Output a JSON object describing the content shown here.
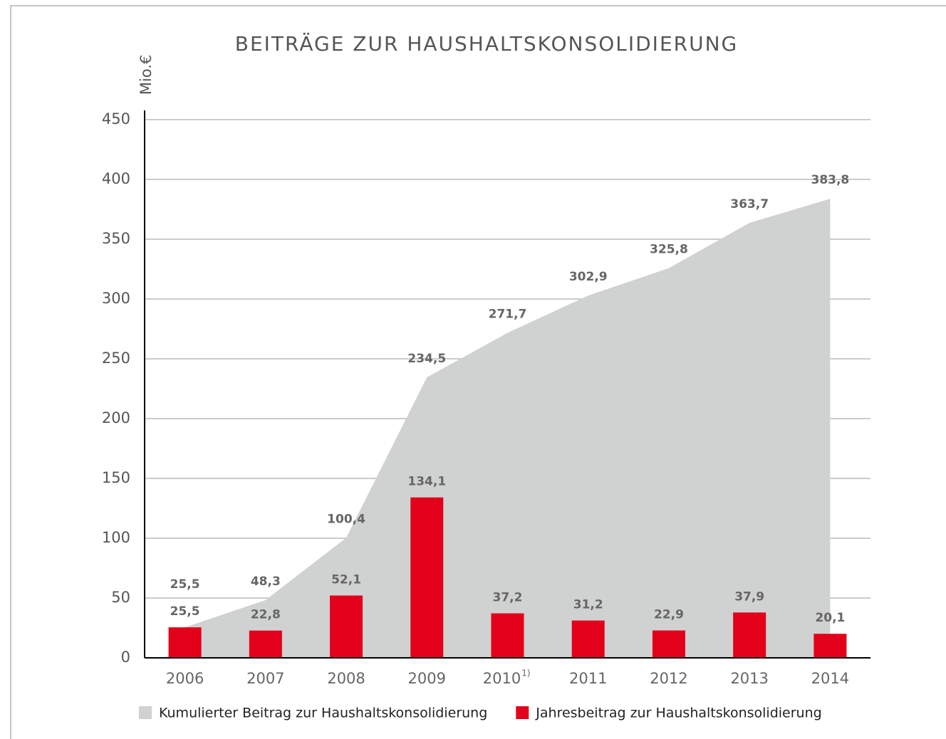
{
  "chart_data": {
    "type": "area-bar",
    "title": "BEITRÄGE ZUR HAUSHALTSKONSOLIDIERUNG",
    "y_label": "Mio.€",
    "categories": [
      "2006",
      "2007",
      "2008",
      "2009",
      "2010",
      "2011",
      "2012",
      "2013",
      "2014"
    ],
    "category_superscripts": [
      null,
      null,
      null,
      null,
      "1)",
      null,
      null,
      null,
      null
    ],
    "series": [
      {
        "name": "Kumulierter Beitrag zur Haushaltskonsolidierung",
        "kind": "area",
        "color": "#d0d1d1",
        "values": [
          25.5,
          48.3,
          100.4,
          234.5,
          271.7,
          302.9,
          325.8,
          363.7,
          383.8
        ],
        "value_labels": [
          "25,5",
          "48,3",
          "100,4",
          "234,5",
          "271,7",
          "302,9",
          "325,8",
          "363,7",
          "383,8"
        ]
      },
      {
        "name": "Jahresbeitrag zur Haushaltskonsolidierung",
        "kind": "bar",
        "color": "#e2001a",
        "values": [
          25.5,
          22.8,
          52.1,
          134.1,
          37.2,
          31.2,
          22.9,
          37.9,
          20.1
        ],
        "value_labels": [
          "25,5",
          "22,8",
          "52,1",
          "134,1",
          "37,2",
          "31,2",
          "22,9",
          "37,9",
          "20,1"
        ]
      }
    ],
    "ylim": [
      0,
      450
    ],
    "yticks": [
      0,
      50,
      100,
      150,
      200,
      250,
      300,
      350,
      400,
      450
    ],
    "grid": true
  }
}
